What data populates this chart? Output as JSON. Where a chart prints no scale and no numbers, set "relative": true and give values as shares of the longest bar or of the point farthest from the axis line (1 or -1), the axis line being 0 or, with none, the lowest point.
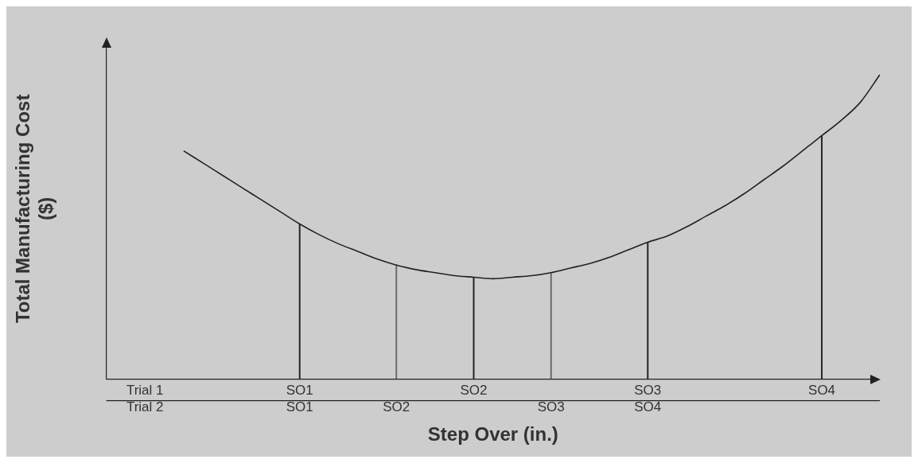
{
  "chart_data": {
    "type": "line",
    "relative": true,
    "ylabel": "Total Manufacturing Cost ($)",
    "xlabel": "Step Over (in.)",
    "categories": [
      null,
      null,
      "Trial 1\nTrial 2",
      null,
      null,
      null,
      null,
      null,
      null,
      null,
      "SO1\nSO1",
      null,
      null,
      null,
      null,
      "\nSO2",
      null,
      null,
      null,
      "SO2\n",
      null,
      null,
      null,
      "\nSO3",
      null,
      null,
      null,
      null,
      "SO3\nSO4",
      null,
      null,
      null,
      null,
      null,
      null,
      null,
      null,
      "SO4\n",
      null,
      null,
      null
    ],
    "series": [
      {
        "color": "#222222",
        "values": [
          null,
          null,
          null,
          null,
          0.75,
          0.71,
          0.67,
          0.63,
          0.59,
          0.55,
          0.51,
          0.475,
          0.445,
          0.42,
          0.395,
          0.375,
          0.36,
          0.35,
          0.34,
          0.335,
          0.33,
          0.335,
          0.34,
          0.35,
          0.365,
          0.38,
          0.4,
          0.425,
          0.45,
          0.47,
          0.5,
          0.535,
          0.57,
          0.61,
          0.655,
          0.7,
          0.75,
          0.8,
          0.85,
          0.91,
          1
        ]
      },
      {
        "type": "bar",
        "color": "#222222",
        "values": [
          null,
          null,
          null,
          null,
          null,
          null,
          null,
          null,
          null,
          null,
          0.51,
          null,
          null,
          null,
          null,
          null,
          null,
          null,
          null,
          0.335,
          null,
          null,
          null,
          null,
          null,
          null,
          null,
          null,
          0.45,
          null,
          null,
          null,
          null,
          null,
          null,
          null,
          null,
          0.8,
          null,
          null,
          null
        ]
      },
      {
        "type": "bar",
        "color": "#6a6a6a",
        "values": [
          null,
          null,
          null,
          null,
          null,
          null,
          null,
          null,
          null,
          null,
          null,
          null,
          null,
          null,
          null,
          0.375,
          null,
          null,
          null,
          null,
          null,
          null,
          null,
          0.35,
          null,
          null,
          null,
          null,
          null,
          null,
          null,
          null,
          null,
          null,
          null,
          null,
          null,
          null,
          null,
          null,
          null
        ]
      }
    ],
    "grid": false,
    "legend": false,
    "marker": "none",
    "line_style": "solid"
  }
}
